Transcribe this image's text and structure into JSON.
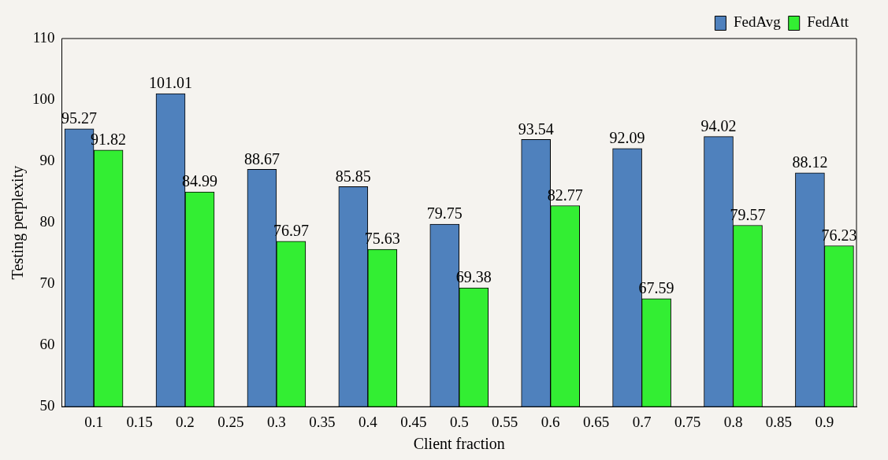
{
  "chart_data": {
    "type": "bar",
    "xlabel": "Client fraction",
    "ylabel": "Testing perplexity",
    "x": [
      0.1,
      0.2,
      0.3,
      0.4,
      0.5,
      0.6,
      0.7,
      0.8,
      0.9
    ],
    "series": [
      {
        "name": "FedAvg",
        "color": "#4f81bd",
        "values": [
          95.27,
          101.01,
          88.67,
          85.85,
          79.75,
          93.54,
          92.09,
          94.02,
          88.12
        ]
      },
      {
        "name": "FedAtt",
        "color": "#33ee33",
        "values": [
          91.82,
          84.99,
          76.97,
          75.63,
          69.38,
          82.77,
          67.59,
          79.57,
          76.23
        ]
      }
    ],
    "xlim": [
      0.065,
      0.935
    ],
    "xticks": [
      0.1,
      0.15,
      0.2,
      0.25,
      0.3,
      0.35,
      0.4,
      0.45,
      0.5,
      0.55,
      0.6,
      0.65,
      0.7,
      0.75,
      0.8,
      0.85,
      0.9
    ],
    "ylim": [
      50,
      110
    ],
    "yticks": [
      50,
      60,
      70,
      80,
      90,
      100,
      110
    ],
    "data_labels": true,
    "grid": false,
    "legend": "top right"
  }
}
